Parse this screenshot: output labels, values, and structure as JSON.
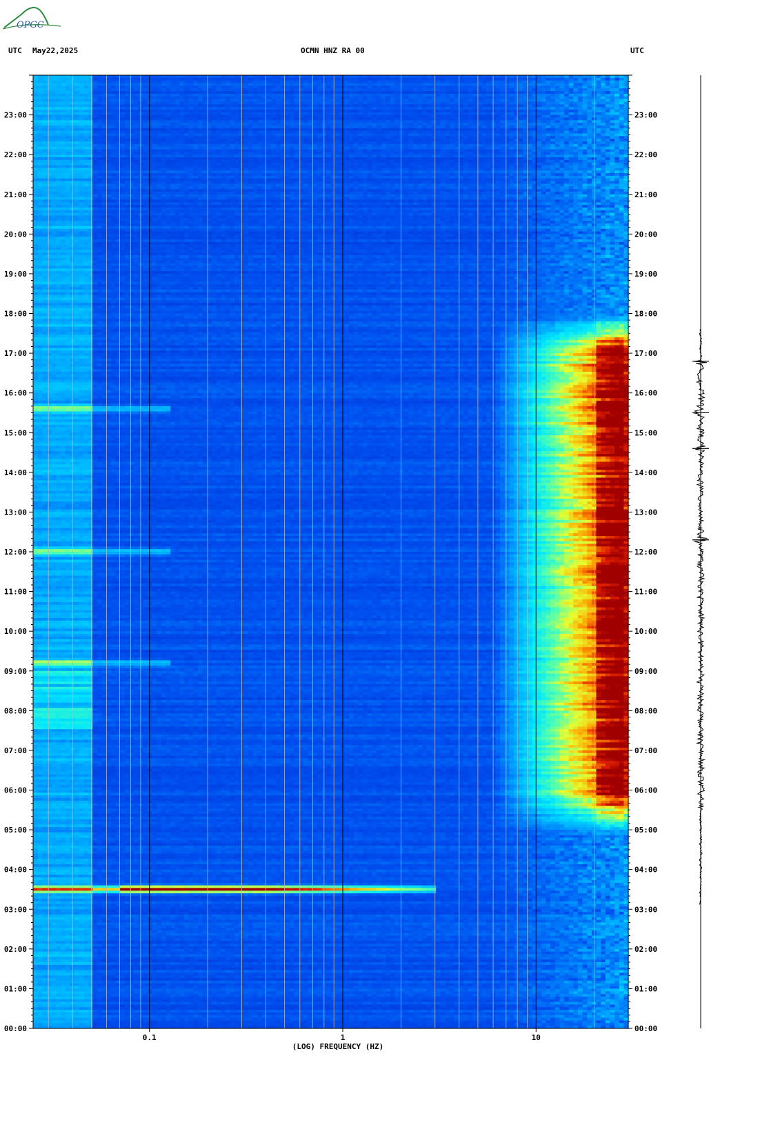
{
  "header": {
    "left_tz": "UTC",
    "date": "May22,2025",
    "station": "OCMN HNZ RA 00",
    "right_tz": "UTC"
  },
  "logo": {
    "text": "OPGC"
  },
  "chart_data": {
    "type": "heatmap",
    "title": "OCMN HNZ RA 00",
    "xlabel": "(LOG) FREQUENCY (HZ)",
    "ylabel": "UTC",
    "x_scale": "log",
    "xlim": [
      0.025,
      30
    ],
    "ylim_hours": [
      0,
      24
    ],
    "x_tick_labels": [
      "0.1",
      "1",
      "10"
    ],
    "x_ticks": [
      0.1,
      1,
      10
    ],
    "x_gridlines": [
      0.03,
      0.04,
      0.05,
      0.06,
      0.07,
      0.08,
      0.09,
      0.1,
      0.2,
      0.3,
      0.4,
      0.5,
      0.6,
      0.7,
      0.8,
      0.9,
      1,
      2,
      3,
      4,
      5,
      6,
      7,
      8,
      9,
      10,
      20
    ],
    "y_ticks": [
      0,
      1,
      2,
      3,
      4,
      5,
      6,
      7,
      8,
      9,
      10,
      11,
      12,
      13,
      14,
      15,
      16,
      17,
      18,
      19,
      20,
      21,
      22,
      23
    ],
    "y_tick_labels": [
      "00:00",
      "01:00",
      "02:00",
      "03:00",
      "04:00",
      "05:00",
      "06:00",
      "07:00",
      "08:00",
      "09:00",
      "10:00",
      "11:00",
      "12:00",
      "13:00",
      "14:00",
      "15:00",
      "16:00",
      "17:00",
      "18:00",
      "19:00",
      "20:00",
      "21:00",
      "22:00",
      "23:00"
    ],
    "colormap": [
      "#00008c",
      "#0024c8",
      "#0050f0",
      "#00a0ff",
      "#00e6ff",
      "#50ffb0",
      "#e6ff30",
      "#ffa000",
      "#e02000",
      "#a00000"
    ],
    "features": [
      {
        "name": "event",
        "time_h": 3.5,
        "freq_range": [
          0.05,
          3
        ],
        "peak_freq_range": [
          0.07,
          0.4
        ],
        "level": "high"
      },
      {
        "name": "low-frequency band",
        "time_h": 15.6,
        "freq_range": [
          0.025,
          0.1
        ],
        "level": "medium"
      },
      {
        "name": "low-frequency band",
        "time_h": 12.0,
        "freq_range": [
          0.025,
          0.1
        ],
        "level": "medium"
      },
      {
        "name": "low-frequency band",
        "time_h": 9.2,
        "freq_range": [
          0.025,
          0.1
        ],
        "level": "medium"
      },
      {
        "name": "daytime high-frequency noise",
        "time_range_h": [
          5.5,
          17.5
        ],
        "freq_range": [
          7,
          30
        ],
        "peak_freq_range": [
          20,
          28
        ],
        "level": "high"
      }
    ],
    "trace": {
      "name": "seismogram",
      "active_time_range_h": [
        3.1,
        17.6
      ],
      "peak_times_h": [
        12.3,
        15.5,
        14.6,
        16.8
      ]
    }
  }
}
